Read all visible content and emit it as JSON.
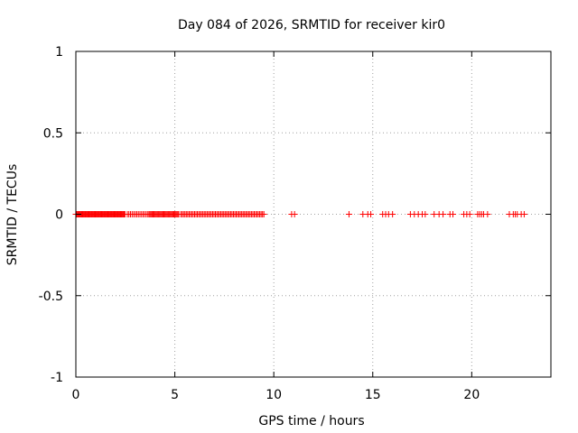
{
  "chart_data": {
    "type": "scatter",
    "title": "Day 084 of 2026, SRMTID for receiver kir0",
    "xlabel": "GPS time / hours",
    "ylabel": "SRMTID / TECUs",
    "xlim": [
      0,
      24
    ],
    "ylim": [
      -1,
      1
    ],
    "grid": true,
    "marker": "+",
    "colors": {
      "points": "#ff0000",
      "grid": "#a0a0a0",
      "axes": "#000000"
    },
    "x_ticks": [
      0,
      5,
      10,
      15,
      20
    ],
    "x_tick_labels": [
      "0",
      "5",
      "10",
      "15",
      "20"
    ],
    "y_ticks": [
      1,
      0.5,
      0,
      -0.5,
      -1
    ],
    "y_tick_labels": [
      "1",
      "0.5",
      "0",
      "-0.5",
      "-1"
    ],
    "series": [
      {
        "name": "SRMTID",
        "dense_segments": [
          [
            0.0,
            2.5,
            0.04
          ],
          [
            2.6,
            3.7,
            0.08
          ],
          [
            3.7,
            5.2,
            0.05
          ],
          [
            5.3,
            9.55,
            0.07
          ]
        ],
        "points_x": [
          10.9,
          11.05,
          13.8,
          14.5,
          14.75,
          14.9,
          15.5,
          15.65,
          15.8,
          16.0,
          16.9,
          17.1,
          17.3,
          17.5,
          17.65,
          18.1,
          18.35,
          18.55,
          18.9,
          19.05,
          19.6,
          19.75,
          19.9,
          20.3,
          20.4,
          20.5,
          20.6,
          20.8,
          21.9,
          22.1,
          22.2,
          22.3,
          22.5,
          22.65
        ],
        "y": 0
      }
    ]
  }
}
